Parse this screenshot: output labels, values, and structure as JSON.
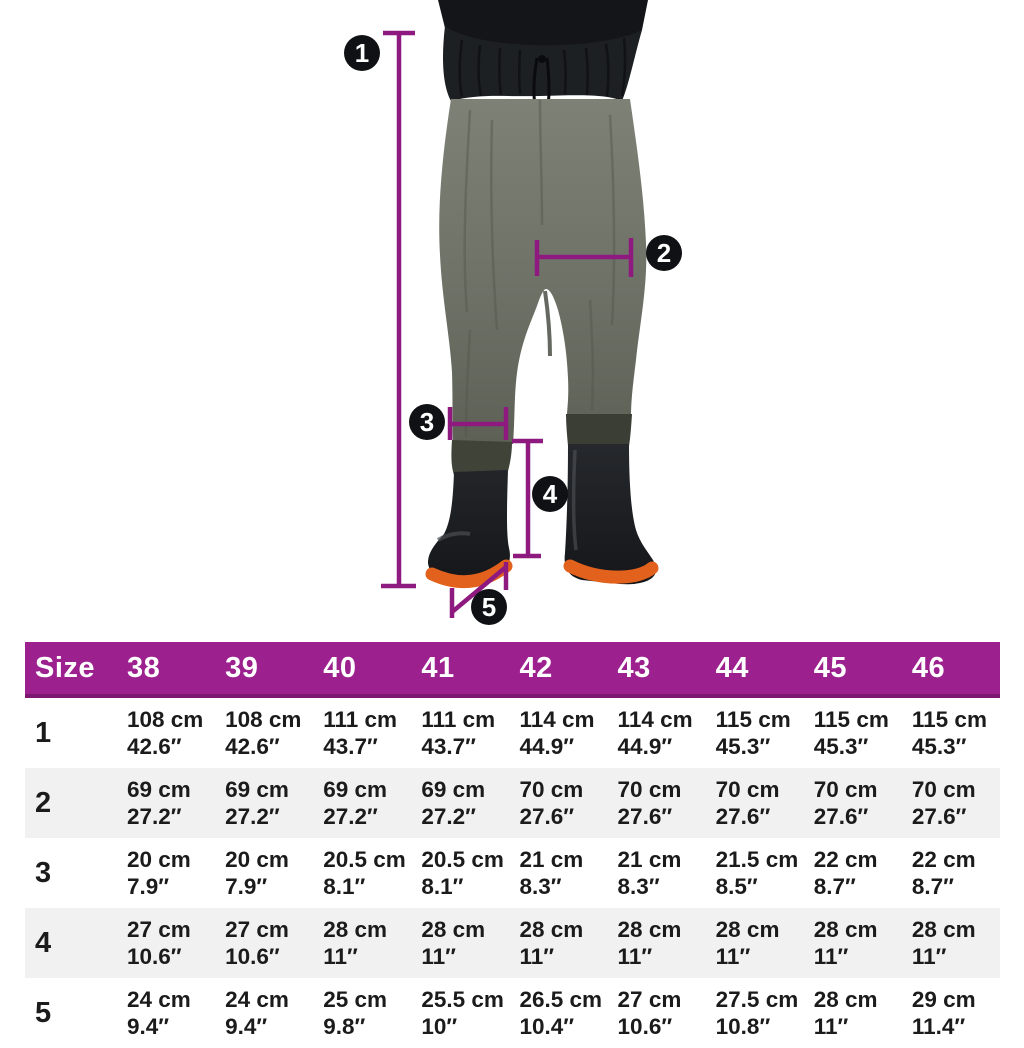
{
  "colors": {
    "accent_purple": "#9C218E",
    "accent_purple_dark": "#7C1870",
    "marker_purple": "#8E1A80",
    "boot_sole_orange": "#E2611C",
    "wader_fabric_olive": "#757969",
    "wader_top_black": "#1D2023",
    "alt_row_gray": "#F1F1F1",
    "table_text": "#1B1B1B"
  },
  "diagram": {
    "markers": [
      {
        "label": "1"
      },
      {
        "label": "2"
      },
      {
        "label": "3"
      },
      {
        "label": "4"
      },
      {
        "label": "5"
      }
    ]
  },
  "size_table": {
    "header": [
      "Size",
      "38",
      "39",
      "40",
      "41",
      "42",
      "43",
      "44",
      "45",
      "46"
    ],
    "rows": [
      {
        "label": "1",
        "cells": [
          {
            "cm": "108 cm",
            "in": "42.6″"
          },
          {
            "cm": "108 cm",
            "in": "42.6″"
          },
          {
            "cm": "111 cm",
            "in": "43.7″"
          },
          {
            "cm": "111 cm",
            "in": "43.7″"
          },
          {
            "cm": "114 cm",
            "in": "44.9″"
          },
          {
            "cm": "114 cm",
            "in": "44.9″"
          },
          {
            "cm": "115 cm",
            "in": "45.3″"
          },
          {
            "cm": "115 cm",
            "in": "45.3″"
          },
          {
            "cm": "115 cm",
            "in": "45.3″"
          }
        ]
      },
      {
        "label": "2",
        "cells": [
          {
            "cm": "69 cm",
            "in": "27.2″"
          },
          {
            "cm": "69 cm",
            "in": "27.2″"
          },
          {
            "cm": "69 cm",
            "in": "27.2″"
          },
          {
            "cm": "69 cm",
            "in": "27.2″"
          },
          {
            "cm": "70 cm",
            "in": "27.6″"
          },
          {
            "cm": "70 cm",
            "in": "27.6″"
          },
          {
            "cm": "70 cm",
            "in": "27.6″"
          },
          {
            "cm": "70 cm",
            "in": "27.6″"
          },
          {
            "cm": "70 cm",
            "in": "27.6″"
          }
        ]
      },
      {
        "label": "3",
        "cells": [
          {
            "cm": "20 cm",
            "in": "7.9″"
          },
          {
            "cm": "20 cm",
            "in": "7.9″"
          },
          {
            "cm": "20.5 cm",
            "in": "8.1″"
          },
          {
            "cm": "20.5 cm",
            "in": "8.1″"
          },
          {
            "cm": "21 cm",
            "in": "8.3″"
          },
          {
            "cm": "21 cm",
            "in": "8.3″"
          },
          {
            "cm": "21.5 cm",
            "in": "8.5″"
          },
          {
            "cm": "22 cm",
            "in": "8.7″"
          },
          {
            "cm": "22 cm",
            "in": "8.7″"
          }
        ]
      },
      {
        "label": "4",
        "cells": [
          {
            "cm": "27 cm",
            "in": "10.6″"
          },
          {
            "cm": "27 cm",
            "in": "10.6″"
          },
          {
            "cm": "28 cm",
            "in": "11″"
          },
          {
            "cm": "28 cm",
            "in": "11″"
          },
          {
            "cm": "28 cm",
            "in": "11″"
          },
          {
            "cm": "28 cm",
            "in": "11″"
          },
          {
            "cm": "28 cm",
            "in": "11″"
          },
          {
            "cm": "28 cm",
            "in": "11″"
          },
          {
            "cm": "28 cm",
            "in": "11″"
          }
        ]
      },
      {
        "label": "5",
        "cells": [
          {
            "cm": "24 cm",
            "in": "9.4″"
          },
          {
            "cm": "24 cm",
            "in": "9.4″"
          },
          {
            "cm": "25 cm",
            "in": "9.8″"
          },
          {
            "cm": "25.5 cm",
            "in": "10″"
          },
          {
            "cm": "26.5 cm",
            "in": "10.4″"
          },
          {
            "cm": "27 cm",
            "in": "10.6″"
          },
          {
            "cm": "27.5 cm",
            "in": "10.8″"
          },
          {
            "cm": "28 cm",
            "in": "11″"
          },
          {
            "cm": "29 cm",
            "in": "11.4″"
          }
        ]
      }
    ]
  }
}
